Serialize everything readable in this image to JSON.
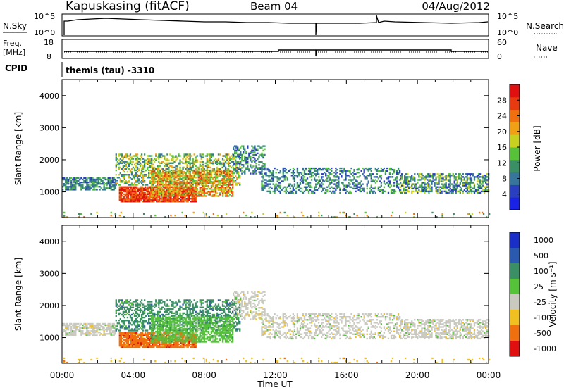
{
  "header": {
    "station": "Kapuskasing (fitACF)",
    "beam": "Beam 04",
    "date": "04/Aug/2012"
  },
  "top_panels": {
    "nsky_label": "N.Sky",
    "nsky_ticks": [
      "10^5",
      "10^0"
    ],
    "nsearch_label": "N.Search",
    "nsearch_ticks": [
      "10^5",
      "10^0"
    ],
    "freq_label_1": "Freq.",
    "freq_label_2": "[MHz]",
    "freq_ticks": [
      "18",
      "8"
    ],
    "nave_label": "Nave",
    "nave_ticks": [
      "60",
      "0"
    ],
    "cpid_label": "CPID",
    "cpid_text": "themis (tau) -3310"
  },
  "chart_data": [
    {
      "type": "heatmap",
      "name": "power",
      "ylabel": "Slant Range [km]",
      "yticks": [
        "1000",
        "2000",
        "3000",
        "4000"
      ],
      "ylim": [
        200,
        4500
      ],
      "xlabel": "Time UT",
      "xticks": [
        "00:00",
        "04:00",
        "08:00",
        "12:00",
        "16:00",
        "20:00",
        "00:00"
      ],
      "xlim_hours": [
        0,
        24
      ],
      "colorbar": {
        "label": "Power [dB]",
        "ticks": [
          "4",
          "8",
          "12",
          "16",
          "20",
          "24",
          "28"
        ],
        "range": [
          0,
          32
        ],
        "colors": [
          "#1a22e6",
          "#2a3fbf",
          "#37759a",
          "#3a8f64",
          "#55c23a",
          "#c8d020",
          "#f0a014",
          "#f07010",
          "#e83a10",
          "#e01010"
        ]
      }
    },
    {
      "type": "heatmap",
      "name": "velocity",
      "ylabel": "Slant Range [km]",
      "yticks": [
        "1000",
        "2000",
        "3000",
        "4000"
      ],
      "ylim": [
        200,
        4500
      ],
      "xlabel": "Time UT",
      "xticks": [
        "00:00",
        "04:00",
        "08:00",
        "12:00",
        "16:00",
        "20:00",
        "00:00"
      ],
      "xlim_hours": [
        0,
        24
      ],
      "colorbar": {
        "label": "Velocity [m s⁻¹]",
        "ticks": [
          "1000",
          "500",
          "100",
          "25",
          "-25",
          "-100",
          "-500",
          "-1000"
        ],
        "colors": [
          "#1a2fc8",
          "#2a5ab0",
          "#3a8f64",
          "#55c23a",
          "#c9c9c0",
          "#f0c020",
          "#f07010",
          "#e01010"
        ]
      }
    }
  ]
}
